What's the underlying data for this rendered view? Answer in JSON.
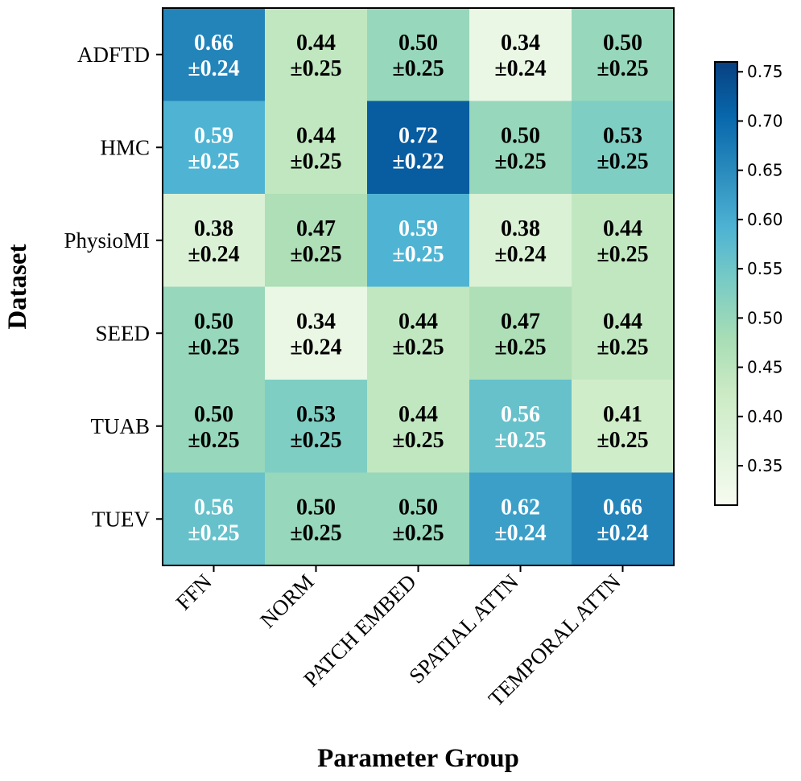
{
  "chart_data": {
    "type": "heatmap",
    "xlabel": "Parameter Group",
    "ylabel": "Dataset",
    "x_categories": [
      "FFN",
      "NORM",
      "PATCH EMBED",
      "SPATIAL ATTN",
      "TEMPORAL ATTN"
    ],
    "y_categories": [
      "ADFTD",
      "HMC",
      "PhysioMI",
      "SEED",
      "TUAB",
      "TUEV"
    ],
    "values": [
      [
        0.66,
        0.44,
        0.5,
        0.34,
        0.5
      ],
      [
        0.59,
        0.44,
        0.72,
        0.5,
        0.53
      ],
      [
        0.38,
        0.47,
        0.59,
        0.38,
        0.44
      ],
      [
        0.5,
        0.34,
        0.44,
        0.47,
        0.44
      ],
      [
        0.5,
        0.53,
        0.44,
        0.56,
        0.41
      ],
      [
        0.56,
        0.5,
        0.5,
        0.62,
        0.66
      ]
    ],
    "cell_labels": [
      [
        [
          "0.66",
          "±0.24"
        ],
        [
          "0.44",
          "±0.25"
        ],
        [
          "0.50",
          "±0.25"
        ],
        [
          "0.34",
          "±0.24"
        ],
        [
          "0.50",
          "±0.25"
        ]
      ],
      [
        [
          "0.59",
          "±0.25"
        ],
        [
          "0.44",
          "±0.25"
        ],
        [
          "0.72",
          "±0.22"
        ],
        [
          "0.50",
          "±0.25"
        ],
        [
          "0.53",
          "±0.25"
        ]
      ],
      [
        [
          "0.38",
          "±0.24"
        ],
        [
          "0.47",
          "±0.25"
        ],
        [
          "0.59",
          "±0.25"
        ],
        [
          "0.38",
          "±0.24"
        ],
        [
          "0.44",
          "±0.25"
        ]
      ],
      [
        [
          "0.50",
          "±0.25"
        ],
        [
          "0.34",
          "±0.24"
        ],
        [
          "0.44",
          "±0.25"
        ],
        [
          "0.47",
          "±0.25"
        ],
        [
          "0.44",
          "±0.25"
        ]
      ],
      [
        [
          "0.50",
          "±0.25"
        ],
        [
          "0.53",
          "±0.25"
        ],
        [
          "0.44",
          "±0.25"
        ],
        [
          "0.56",
          "±0.25"
        ],
        [
          "0.41",
          "±0.25"
        ]
      ],
      [
        [
          "0.56",
          "±0.25"
        ],
        [
          "0.50",
          "±0.25"
        ],
        [
          "0.50",
          "±0.25"
        ],
        [
          "0.62",
          "±0.24"
        ],
        [
          "0.66",
          "±0.24"
        ]
      ]
    ],
    "colormap": "GnBu",
    "vmin": 0.31,
    "vmax": 0.76,
    "colorbar_ticks": [
      0.35,
      0.4,
      0.45,
      0.5,
      0.55,
      0.6,
      0.65,
      0.7,
      0.75
    ],
    "colorbar_tick_labels": [
      "0.35",
      "0.40",
      "0.45",
      "0.50",
      "0.55",
      "0.60",
      "0.65",
      "0.70",
      "0.75"
    ],
    "colorbar_position": "right",
    "light_text_color": "#ffffff",
    "dark_text_color": "#000000",
    "light_text_threshold": 0.555
  }
}
